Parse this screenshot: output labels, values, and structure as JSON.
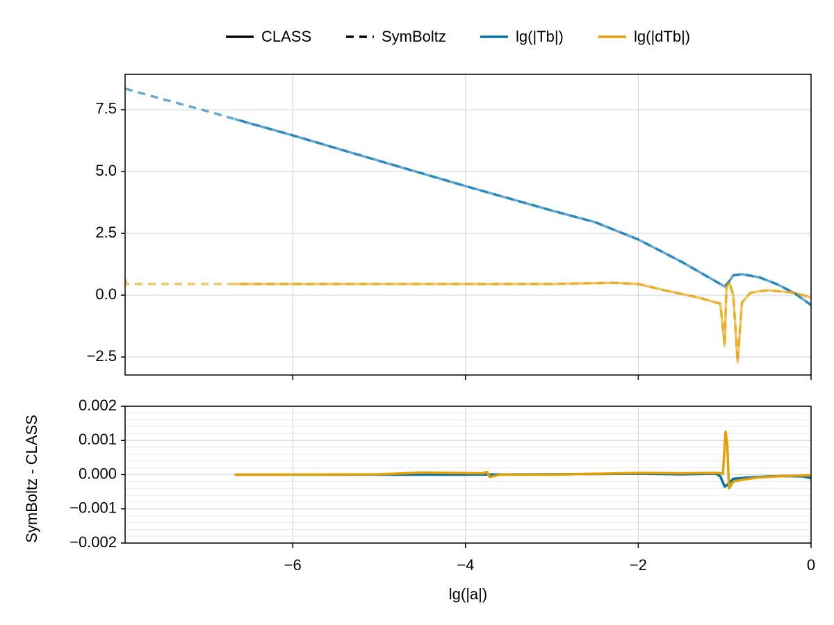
{
  "chart_data": [
    {
      "type": "line",
      "line_styles": [
        {
          "name": "CLASS",
          "dash": "solid"
        },
        {
          "name": "SymBoltz",
          "dash": "dashed"
        }
      ],
      "xlim": [
        -7.94,
        0
      ],
      "xticks": [
        -6,
        -4,
        -2,
        0
      ],
      "ylim": [
        -3.23,
        8.93
      ],
      "yticks": [
        {
          "value": -2.5,
          "label": "−2.5"
        },
        {
          "value": 0,
          "label": "0.0"
        },
        {
          "value": 2.5,
          "label": "2.5"
        },
        {
          "value": 5,
          "label": "5.0"
        },
        {
          "value": 7.5,
          "label": "7.5"
        }
      ],
      "grid": true,
      "opacity": 0.6,
      "series": [
        {
          "name": "lg(|Tb|)",
          "style": "CLASS",
          "color": "#0072b2",
          "x": [
            -6.67,
            -6,
            -5,
            -4,
            -3,
            -2.5,
            -2,
            -1.5,
            -1.2,
            -1.0,
            -0.95,
            -0.9,
            -0.8,
            -0.6,
            -0.4,
            -0.2,
            0
          ],
          "values": [
            7.12,
            6.46,
            5.43,
            4.41,
            3.42,
            2.95,
            2.25,
            1.35,
            0.75,
            0.35,
            0.55,
            0.8,
            0.85,
            0.72,
            0.45,
            0.1,
            -0.4
          ]
        },
        {
          "name": "lg(|dTb|)",
          "style": "CLASS",
          "color": "#e69f00",
          "x": [
            -6.67,
            -5,
            -4,
            -3,
            -2.3,
            -2,
            -1.7,
            -1.3,
            -1.05,
            -1.0,
            -0.98,
            -0.95,
            -0.9,
            -0.85,
            -0.8,
            -0.7,
            -0.5,
            -0.2,
            0
          ],
          "values": [
            0.45,
            0.45,
            0.45,
            0.45,
            0.5,
            0.45,
            0.2,
            -0.1,
            -0.35,
            -2.05,
            0.3,
            0.55,
            0.0,
            -2.7,
            -0.3,
            0.1,
            0.2,
            0.1,
            -0.1
          ]
        },
        {
          "name": "lg(|Tb|)",
          "style": "SymBoltz",
          "color": "#0072b2",
          "x": [
            -7.94,
            -7.5,
            -7,
            -6.67,
            -6,
            -5,
            -4,
            -3,
            -2.5,
            -2,
            -1.5,
            -1.2,
            -1.0,
            -0.95,
            -0.9,
            -0.8,
            -0.6,
            -0.4,
            -0.2,
            0
          ],
          "values": [
            8.35,
            7.92,
            7.45,
            7.12,
            6.46,
            5.43,
            4.41,
            3.42,
            2.95,
            2.25,
            1.35,
            0.75,
            0.35,
            0.55,
            0.8,
            0.85,
            0.72,
            0.45,
            0.1,
            -0.4
          ]
        },
        {
          "name": "lg(|dTb|)",
          "style": "SymBoltz",
          "color": "#e69f00",
          "x": [
            -7.94,
            -7.92,
            -7.85,
            -7,
            -6.67,
            -5,
            -4,
            -3,
            -2.3,
            -2,
            -1.7,
            -1.3,
            -1.05,
            -1.0,
            -0.98,
            -0.95,
            -0.9,
            -0.85,
            -0.8,
            -0.7,
            -0.5,
            -0.2,
            0
          ],
          "values": [
            0.65,
            0.45,
            0.45,
            0.45,
            0.45,
            0.45,
            0.45,
            0.45,
            0.5,
            0.45,
            0.2,
            -0.1,
            -0.35,
            -2.05,
            0.3,
            0.55,
            0.0,
            -2.7,
            -0.3,
            0.1,
            0.2,
            0.1,
            -0.1
          ]
        }
      ]
    },
    {
      "type": "line",
      "xlabel": "lg(|a|)",
      "ylabel": "SymBoltz - CLASS",
      "xlim": [
        -7.94,
        0
      ],
      "xticks": [
        {
          "value": -6,
          "label": "−6"
        },
        {
          "value": -4,
          "label": "−4"
        },
        {
          "value": -2,
          "label": "−2"
        },
        0
      ],
      "ylim": [
        -0.002,
        0.002
      ],
      "yticks": [
        {
          "value": -0.002,
          "label": "−0.002"
        },
        {
          "value": -0.001,
          "label": "−0.001"
        },
        {
          "value": 0,
          "label": "0.000"
        },
        {
          "value": 0.001,
          "label": "0.001"
        },
        {
          "value": 0.002,
          "label": "0.002"
        }
      ],
      "grid": true,
      "minor_grid": true,
      "opacity": 1,
      "series": [
        {
          "name": "lg(|Tb|)",
          "color": "#0072b2",
          "x": [
            -6.67,
            -5,
            -4,
            -3,
            -2,
            -1.5,
            -1.1,
            -1.05,
            -1.0,
            -0.97,
            -0.9,
            -0.7,
            -0.5,
            -0.3,
            -0.1,
            0
          ],
          "values": [
            0,
            0,
            0,
            1e-05,
            3e-05,
            1e-05,
            3e-05,
            -5e-05,
            -0.00035,
            -0.0003,
            -0.00012,
            -8e-05,
            -5e-05,
            -4e-05,
            -5e-05,
            -0.0001
          ]
        },
        {
          "name": "lg(|dTb|)",
          "color": "#e69f00",
          "x": [
            -6.67,
            -5,
            -4.5,
            -3.8,
            -3.75,
            -3.72,
            -3.6,
            -3,
            -2,
            -1.5,
            -1.1,
            -1.02,
            -0.99,
            -0.97,
            -0.95,
            -0.9,
            -0.8,
            -0.6,
            -0.4,
            -0.2,
            0
          ],
          "values": [
            0,
            1e-05,
            6e-05,
            4e-05,
            8e-05,
            -7e-05,
            0,
            0,
            5e-05,
            4e-05,
            5e-05,
            3e-05,
            0.00125,
            0.0009,
            -0.0004,
            -0.0002,
            -0.00015,
            -8e-05,
            -5e-05,
            -3e-05,
            -2e-05
          ]
        }
      ]
    }
  ]
}
